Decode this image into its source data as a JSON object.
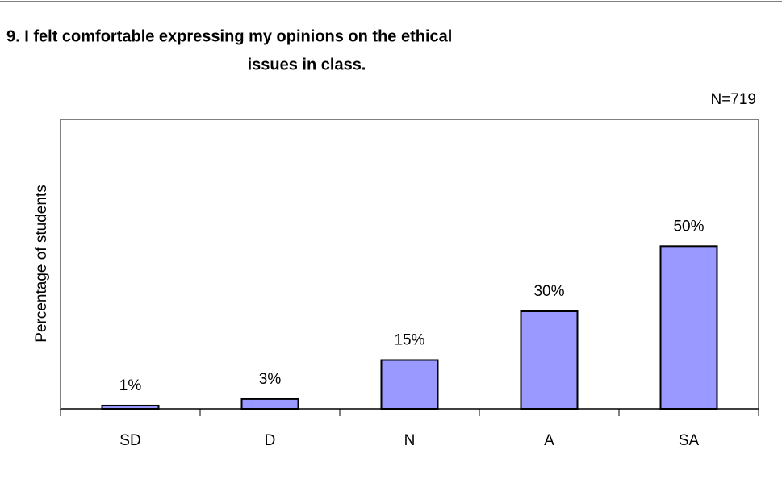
{
  "chart_data": {
    "type": "bar",
    "title": [
      "9. I felt comfortable expressing my opinions on the ethical",
      "issues in class."
    ],
    "annotation": "N=719",
    "y_label": "Percentage of students",
    "categories": [
      "SD",
      "D",
      "N",
      "A",
      "SA"
    ],
    "values": [
      1,
      3,
      15,
      30,
      50
    ],
    "value_labels": [
      "1%",
      "3%",
      "15%",
      "30%",
      "50%"
    ],
    "color": "#9999ff",
    "ylim": [
      0,
      89
    ]
  }
}
